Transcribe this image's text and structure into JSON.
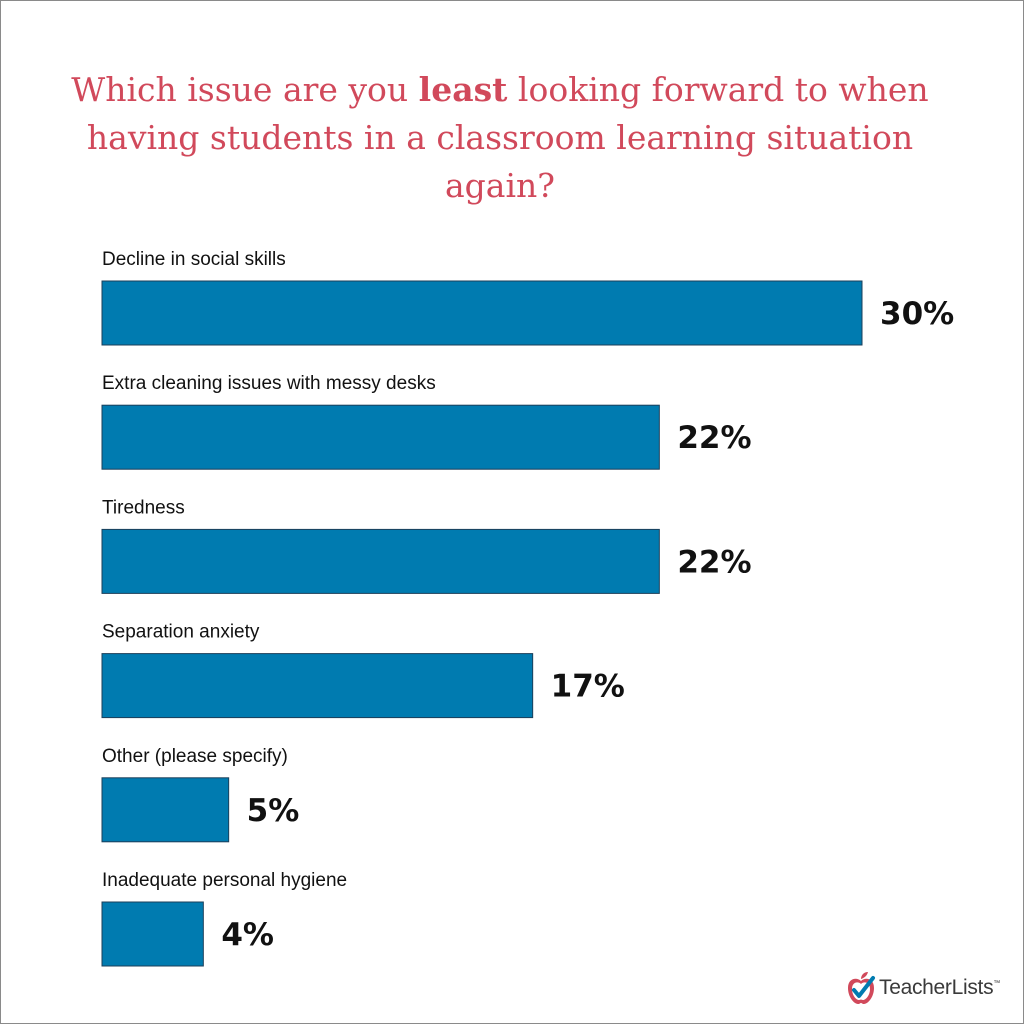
{
  "chart_data": {
    "type": "bar",
    "orientation": "horizontal",
    "title_parts": [
      "Which issue are you ",
      "least",
      " looking forward to when having students in a classroom learning situation again?"
    ],
    "categories": [
      "Decline in social skills",
      "Extra cleaning issues with messy desks",
      "Tiredness",
      "Separation anxiety",
      "Other (please specify)",
      "Inadequate personal hygiene"
    ],
    "values": [
      30,
      22,
      22,
      17,
      5,
      4
    ],
    "value_labels": [
      "30%",
      "22%",
      "22%",
      "17%",
      "5%",
      "4%"
    ],
    "unit": "%",
    "xlim": [
      0,
      30
    ],
    "grid": false,
    "legend": "none",
    "colors": {
      "bar": "#007bb0",
      "title": "#d1495b"
    }
  },
  "brand": {
    "name": "TeacherLists",
    "trademark": "™",
    "icon": "apple-check-icon",
    "apple_color": "#d1495b",
    "check_color": "#007bb0"
  }
}
